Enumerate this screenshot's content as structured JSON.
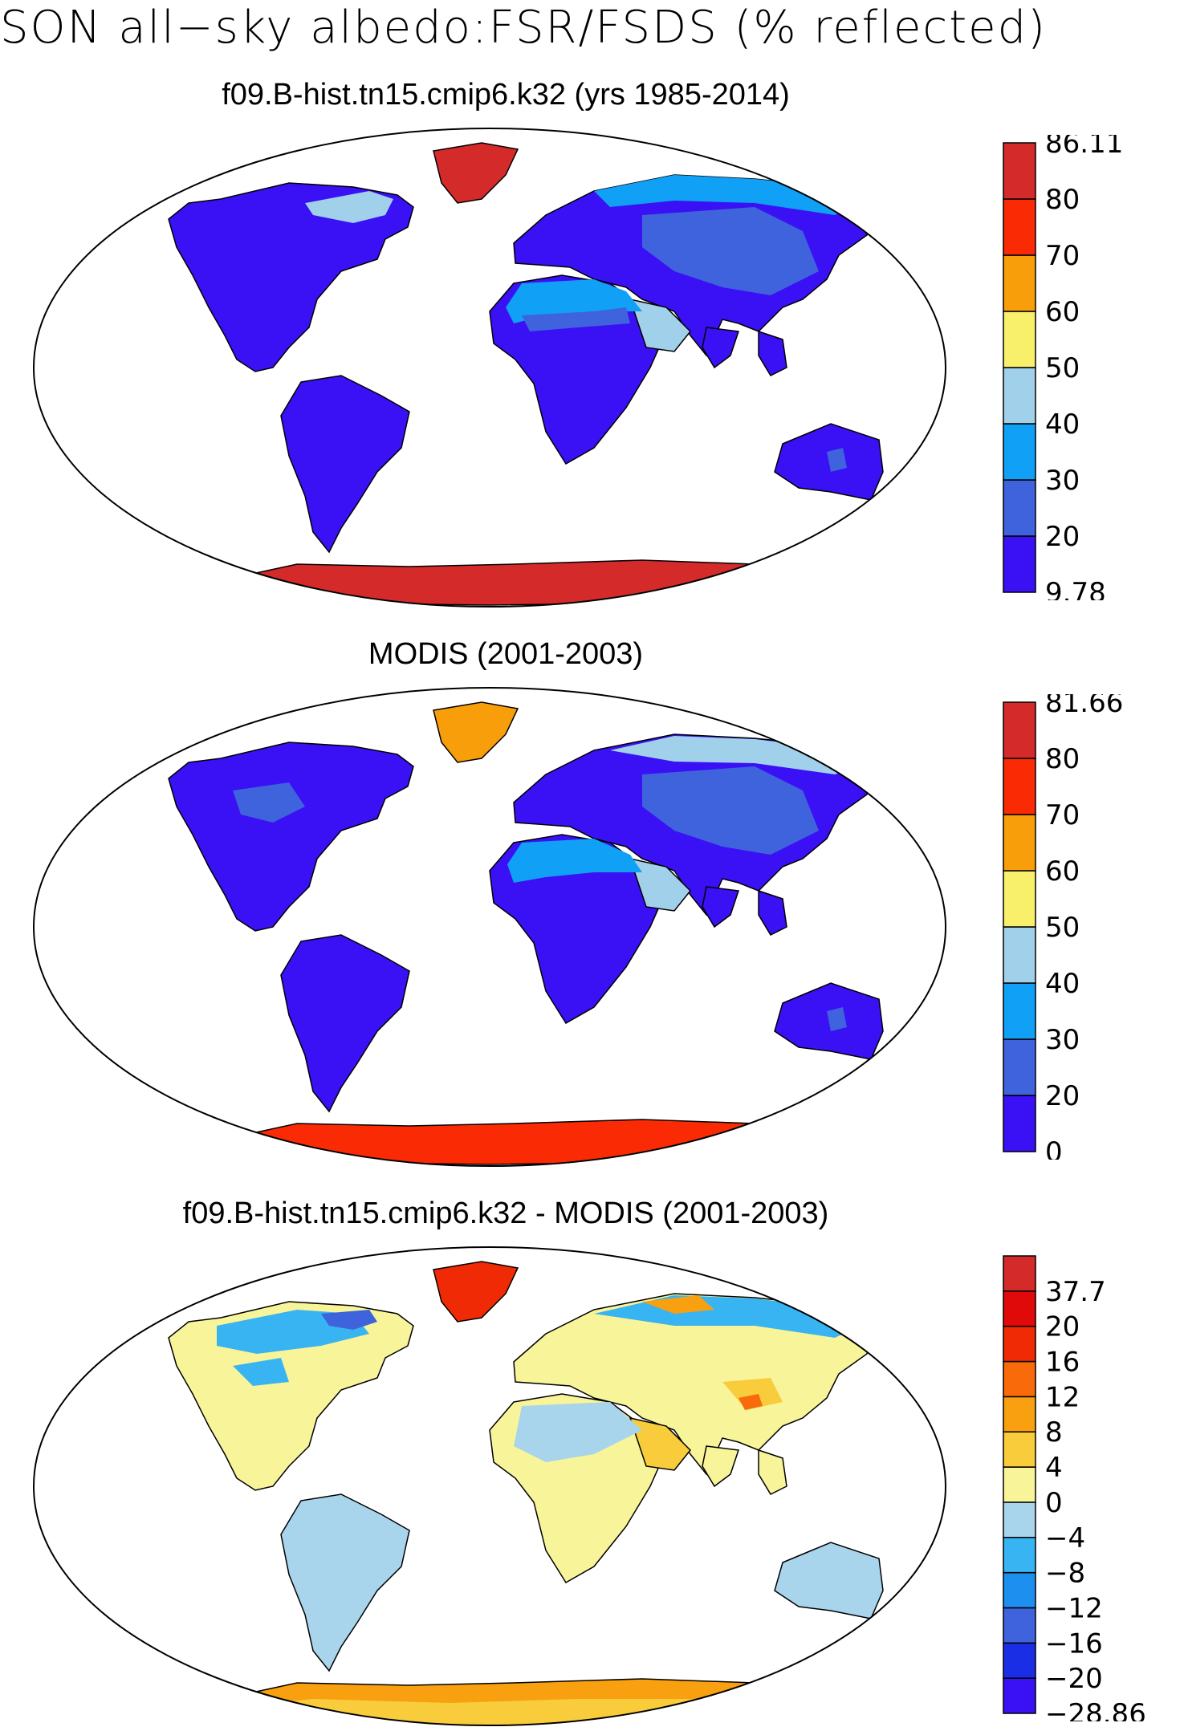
{
  "title": "SON all−sky albedo:FSR/FSDS (% reflected)",
  "panels": [
    {
      "title": "f09.B-hist.tn15.cmip6.k32 (yrs 1985-2014)",
      "kind": "model",
      "colorbar": {
        "colors": [
          "#3a10f5",
          "#3f63dc",
          "#10a0f5",
          "#a0d0ea",
          "#f8ef6a",
          "#f89e0a",
          "#fa2a05",
          "#d42a2a"
        ],
        "labels": [
          "9.78",
          "20",
          "30",
          "40",
          "50",
          "60",
          "70",
          "80",
          "86.11"
        ]
      }
    },
    {
      "title": "MODIS (2001-2003)",
      "kind": "obs",
      "colorbar": {
        "colors": [
          "#3a10f5",
          "#3f63dc",
          "#10a0f5",
          "#a0d0ea",
          "#f8ef6a",
          "#f89e0a",
          "#fa2a05",
          "#d42a2a"
        ],
        "labels": [
          "0",
          "20",
          "30",
          "40",
          "50",
          "60",
          "70",
          "80",
          "81.66"
        ]
      }
    },
    {
      "title": "f09.B-hist.tn15.cmip6.k32 - MODIS (2001-2003)",
      "kind": "diff",
      "colorbar": {
        "colors": [
          "#3a10f5",
          "#1a2ee6",
          "#3f63dc",
          "#1c8fef",
          "#38b4f2",
          "#a8d4ec",
          "#f8f49a",
          "#f8cc3a",
          "#f8a010",
          "#f86a0a",
          "#f02a05",
          "#e00a0a",
          "#d42a2a"
        ],
        "labels": [
          "−28.86",
          "−20",
          "−16",
          "−12",
          "−8",
          "−4",
          "0",
          "4",
          "8",
          "12",
          "16",
          "20",
          "37.7"
        ]
      }
    }
  ]
}
